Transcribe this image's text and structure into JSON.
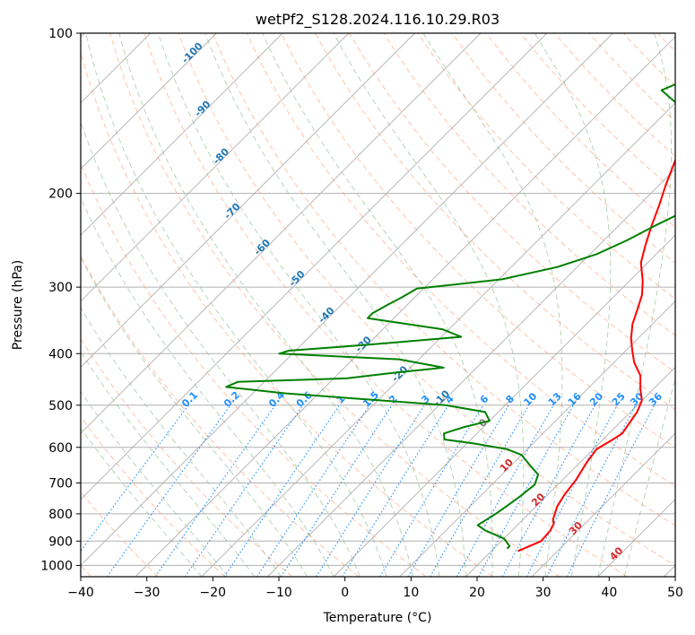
{
  "chart_data": {
    "type": "line",
    "chart_kind": "skew-t log-p diagram",
    "title": "wetPf2_S128.2024.116.10.29.R03",
    "xlabel": "Temperature (°C)",
    "ylabel": "Pressure (hPa)",
    "xlim": [
      -40,
      50
    ],
    "ylim": [
      1050,
      100
    ],
    "y_scale": "log",
    "grid": true,
    "x_ticks": [
      -40,
      -30,
      -20,
      -10,
      0,
      10,
      20,
      30,
      40,
      50
    ],
    "x_tick_labels": [
      "−40",
      "−30",
      "−20",
      "−10",
      "0",
      "10",
      "20",
      "30",
      "40",
      "50"
    ],
    "y_ticks": [
      100,
      200,
      300,
      400,
      500,
      600,
      700,
      800,
      900,
      1000
    ],
    "y_tick_labels": [
      "100",
      "200",
      "300",
      "400",
      "500",
      "600",
      "700",
      "800",
      "900",
      "1000"
    ],
    "series": [
      {
        "name": "",
        "role": "temperature",
        "color": "#ff0000",
        "points": [
          [
            24,
            940
          ],
          [
            25,
            920
          ],
          [
            26,
            900
          ],
          [
            25.8,
            860
          ],
          [
            25.3,
            835
          ],
          [
            24.5,
            818
          ],
          [
            23.2,
            775
          ],
          [
            22.5,
            735
          ],
          [
            22,
            690
          ],
          [
            21,
            640
          ],
          [
            20.5,
            605
          ],
          [
            21.5,
            580
          ],
          [
            22,
            565
          ],
          [
            21.5,
            540
          ],
          [
            21,
            515
          ],
          [
            20,
            490
          ],
          [
            18,
            466
          ],
          [
            16,
            440
          ],
          [
            13,
            415
          ],
          [
            11,
            395
          ],
          [
            9,
            375
          ],
          [
            7,
            352
          ],
          [
            5.5,
            330
          ],
          [
            4,
            310
          ],
          [
            2,
            292
          ],
          [
            -1,
            270
          ],
          [
            -3,
            250
          ],
          [
            -5,
            230
          ],
          [
            -7,
            210
          ],
          [
            -9,
            193
          ],
          [
            -10.5,
            180
          ],
          [
            -12,
            168
          ],
          [
            -13.5,
            155
          ],
          [
            -15,
            145
          ],
          [
            -18,
            140
          ],
          [
            -19.5,
            135
          ],
          [
            -18,
            128
          ],
          [
            -17,
            122
          ],
          [
            -18.5,
            114
          ],
          [
            -20.5,
            108
          ],
          [
            -22,
            100
          ]
        ]
      },
      {
        "name": "",
        "role": "dewpoint",
        "color": "#008000",
        "points": [
          [
            22,
            930
          ],
          [
            22,
            920
          ],
          [
            21,
            905
          ],
          [
            20,
            890
          ],
          [
            16,
            860
          ],
          [
            14,
            840
          ],
          [
            14.5,
            820
          ],
          [
            15,
            800
          ],
          [
            15.5,
            775
          ],
          [
            16,
            745
          ],
          [
            16.5,
            705
          ],
          [
            15.5,
            675
          ],
          [
            13,
            650
          ],
          [
            10,
            620
          ],
          [
            7,
            605
          ],
          [
            1,
            590
          ],
          [
            -4,
            580
          ],
          [
            -5,
            565
          ],
          [
            -3,
            550
          ],
          [
            0,
            535
          ],
          [
            -2,
            515
          ],
          [
            -9,
            500
          ],
          [
            -35,
            475
          ],
          [
            -45,
            462
          ],
          [
            -44,
            452
          ],
          [
            -28,
            445
          ],
          [
            -22,
            435
          ],
          [
            -15,
            425
          ],
          [
            -23,
            410
          ],
          [
            -42,
            400
          ],
          [
            -41,
            395
          ],
          [
            -30,
            385
          ],
          [
            -17,
            372
          ],
          [
            -21,
            360
          ],
          [
            -34,
            343
          ],
          [
            -34,
            336
          ],
          [
            -33,
            324
          ],
          [
            -32,
            314
          ],
          [
            -31,
            302
          ],
          [
            -19.5,
            290
          ],
          [
            -13,
            275
          ],
          [
            -9,
            260
          ],
          [
            -6.5,
            245
          ],
          [
            -4.5,
            230
          ],
          [
            -2,
            215
          ],
          [
            -0.5,
            205
          ],
          [
            -1.5,
            195
          ],
          [
            -5,
            185
          ],
          [
            -8.5,
            175
          ],
          [
            -12,
            165
          ],
          [
            -14,
            156
          ],
          [
            -15,
            150
          ],
          [
            -17,
            143
          ],
          [
            -20,
            135
          ],
          [
            -24,
            128
          ],
          [
            -21,
            120
          ],
          [
            -20,
            112
          ],
          [
            -19.5,
            105
          ],
          [
            -19.5,
            100
          ]
        ]
      }
    ],
    "isotherm_labels_blue": [
      "-100",
      "-90",
      "-80",
      "-70",
      "-60",
      "-50",
      "-40",
      "-30",
      "-20",
      "-10"
    ],
    "isotherm_labels_red": [
      "0",
      "10",
      "20",
      "30",
      "40"
    ],
    "mixing_ratio_labels": [
      "0.1",
      "0.2",
      "0.4",
      "0.6",
      "1",
      "1.5",
      "2",
      "3",
      "4",
      "6",
      "8",
      "10",
      "13",
      "16",
      "20",
      "25",
      "30",
      "36"
    ],
    "colors": {
      "temperature": "#ff0000",
      "dewpoint": "#008000",
      "isotherm": "#b0b0b0",
      "dry_adiabat": "#ffa07a",
      "moist_adiabat": "#8fbc8f",
      "mixing_ratio": "#1e90ff",
      "isotherm_label_cold": "#1f77b4",
      "isotherm_label_warm": "#d62728",
      "zero_label": "#808080"
    }
  }
}
